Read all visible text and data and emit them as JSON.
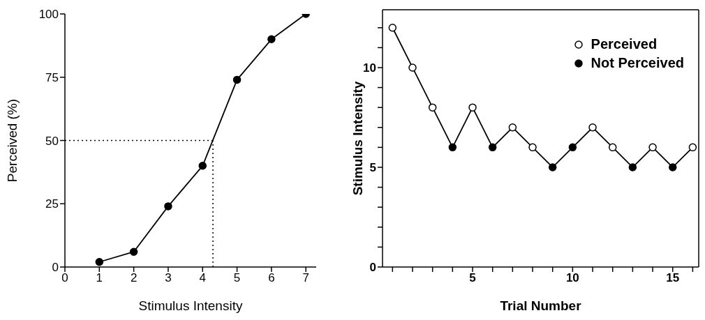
{
  "chart_data": [
    {
      "type": "line",
      "xlabel": "Stimulus Intensity",
      "ylabel": "Perceived (%)",
      "x": [
        1,
        2,
        3,
        4,
        5,
        6,
        7
      ],
      "xlim": [
        0,
        7.3
      ],
      "xticks": [
        0,
        1,
        2,
        3,
        4,
        5,
        6,
        7
      ],
      "ylim": [
        0,
        100
      ],
      "yticks": [
        0,
        25,
        50,
        75,
        100
      ],
      "marker": "circle",
      "line_style": "solid",
      "grid": false,
      "legend": false,
      "series": [
        {
          "color": "#000000",
          "values": [
            2,
            6,
            24,
            40,
            74,
            90,
            100
          ]
        }
      ],
      "ref_lines": [
        {
          "axis": "y",
          "value": 50,
          "line_style": "dotted"
        },
        {
          "axis": "x",
          "value": 4.3,
          "line_style": "dotted"
        }
      ]
    },
    {
      "type": "line",
      "xlabel": "Trial Number",
      "ylabel": "Stimulus Intensity",
      "xlim": [
        0.5,
        16.3
      ],
      "xticks": [
        {
          "value": 1,
          "label": null
        },
        {
          "value": 2,
          "label": null
        },
        {
          "value": 3,
          "label": null
        },
        {
          "value": 4,
          "label": null
        },
        5,
        {
          "value": 6,
          "label": null
        },
        {
          "value": 7,
          "label": null
        },
        {
          "value": 8,
          "label": null
        },
        {
          "value": 9,
          "label": null
        },
        10,
        {
          "value": 11,
          "label": null
        },
        {
          "value": 12,
          "label": null
        },
        {
          "value": 13,
          "label": null
        },
        {
          "value": 14,
          "label": null
        },
        15,
        {
          "value": 16,
          "label": null
        }
      ],
      "ylim": [
        0,
        12.9
      ],
      "yticks": [
        0,
        {
          "value": 1,
          "label": null
        },
        {
          "value": 2,
          "label": null
        },
        {
          "value": 3,
          "label": null
        },
        {
          "value": 4,
          "label": null
        },
        5,
        {
          "value": 6,
          "label": null
        },
        {
          "value": 7,
          "label": null
        },
        {
          "value": 8,
          "label": null
        },
        {
          "value": 9,
          "label": null
        },
        10,
        {
          "value": 11,
          "label": null
        },
        {
          "value": 12,
          "label": null
        }
      ],
      "grid": false,
      "legend": "top right",
      "line_style": "solid",
      "series": [
        {
          "type": "line",
          "marker": "none",
          "color": "#000000",
          "x": [
            1,
            2,
            3,
            4,
            5,
            6,
            7,
            8,
            9,
            10,
            11,
            12,
            13,
            14,
            15,
            16
          ],
          "values": [
            12,
            10,
            8,
            6,
            8,
            6,
            7,
            6,
            5,
            6,
            7,
            6,
            5,
            6,
            5,
            6
          ]
        },
        {
          "type": "scatter",
          "marker": "circle",
          "name": "Perceived",
          "color": "#ffffff",
          "x": [
            1,
            2,
            3,
            5,
            7,
            8,
            11,
            12,
            14,
            16
          ],
          "values": [
            12,
            10,
            8,
            8,
            7,
            6,
            7,
            6,
            6,
            6
          ]
        },
        {
          "type": "scatter",
          "marker": "circle",
          "name": "Not Perceived",
          "color": "#000000",
          "x": [
            4,
            6,
            9,
            10,
            13,
            15
          ],
          "values": [
            6,
            6,
            5,
            6,
            5,
            5
          ]
        }
      ]
    }
  ]
}
